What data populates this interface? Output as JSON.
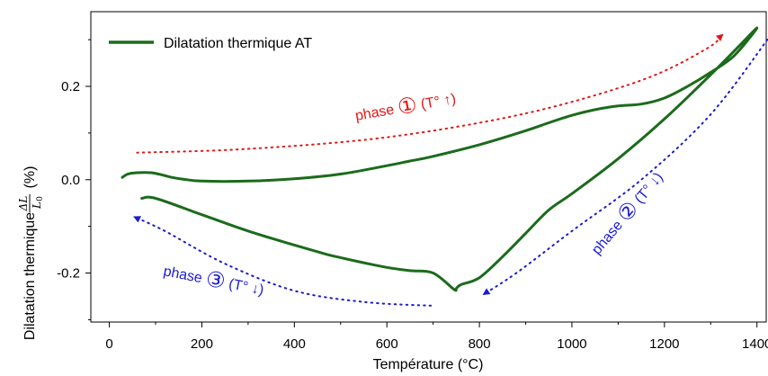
{
  "chart_data": {
    "type": "line",
    "title": "",
    "xlabel": "Température (°C)",
    "ylabel_prefix": "Dilatation thermique",
    "ylabel_frac_num": "ΔL",
    "ylabel_frac_den": "L",
    "ylabel_frac_den_sub": "0",
    "ylabel_suffix": "(%)",
    "xlim": [
      -40,
      1420
    ],
    "ylim": [
      -0.305,
      0.36
    ],
    "xticks": [
      0,
      200,
      400,
      600,
      800,
      1000,
      1200,
      1400
    ],
    "xtick_labels": [
      "0",
      "200",
      "400",
      "600",
      "800",
      "1000",
      "1200",
      "1400"
    ],
    "yticks": [
      -0.2,
      0.0,
      0.2
    ],
    "ytick_labels": [
      "-0.2",
      "0.0",
      "0.2"
    ],
    "grid": false,
    "legend": {
      "position": "top-left",
      "entries": [
        {
          "name": "Dilatation thermique AT",
          "color": "#1b6b1b"
        }
      ]
    },
    "series": [
      {
        "name": "Dilatation thermique AT",
        "color": "#1b6b1b",
        "x": [
          28,
          40,
          60,
          90,
          115,
          135,
          160,
          200,
          300,
          400,
          500,
          600,
          650,
          700,
          800,
          900,
          950,
          1000,
          1050,
          1100,
          1150,
          1200,
          1250,
          1300,
          1350,
          1400,
          1360,
          1300,
          1200,
          1100,
          1000,
          950,
          900,
          850,
          800,
          760,
          750,
          745,
          700,
          650,
          600,
          550,
          500,
          470,
          400,
          300,
          200,
          100,
          70
        ],
        "y": [
          0.005,
          0.012,
          0.015,
          0.015,
          0.01,
          0.005,
          0.001,
          -0.003,
          -0.003,
          0.002,
          0.012,
          0.03,
          0.04,
          0.05,
          0.075,
          0.105,
          0.122,
          0.138,
          0.15,
          0.158,
          0.162,
          0.175,
          0.2,
          0.23,
          0.265,
          0.325,
          0.285,
          0.225,
          0.13,
          0.045,
          -0.03,
          -0.065,
          -0.115,
          -0.165,
          -0.21,
          -0.225,
          -0.233,
          -0.235,
          -0.2,
          -0.195,
          -0.188,
          -0.178,
          -0.167,
          -0.16,
          -0.14,
          -0.11,
          -0.075,
          -0.04,
          -0.04
        ]
      }
    ],
    "annotations": [
      {
        "id": "phase1",
        "pre": "phase ",
        "circled": "①",
        "post": " (T° ↑)",
        "color": "#e01818",
        "arrow_points": [
          [
            60,
            0.058
          ],
          [
            300,
            0.066
          ],
          [
            600,
            0.091
          ],
          [
            900,
            0.142
          ],
          [
            1150,
            0.213
          ],
          [
            1290,
            0.28
          ],
          [
            1325,
            0.31
          ]
        ]
      },
      {
        "id": "phase2",
        "pre": "phase ",
        "circled": "②",
        "post": " (T° ↓)",
        "color": "#1c1ccc",
        "arrow_points": [
          [
            1430,
            0.31
          ],
          [
            1300,
            0.14
          ],
          [
            1150,
            0.0
          ],
          [
            1000,
            -0.11
          ],
          [
            880,
            -0.2
          ],
          [
            810,
            -0.245
          ]
        ]
      },
      {
        "id": "phase3",
        "pre": "phase ",
        "circled": "③",
        "post": " (T° ↓)",
        "color": "#1c1ccc",
        "arrow_points": [
          [
            695,
            -0.27
          ],
          [
            550,
            -0.262
          ],
          [
            400,
            -0.238
          ],
          [
            250,
            -0.18
          ],
          [
            120,
            -0.11
          ],
          [
            55,
            -0.08
          ]
        ]
      }
    ]
  }
}
